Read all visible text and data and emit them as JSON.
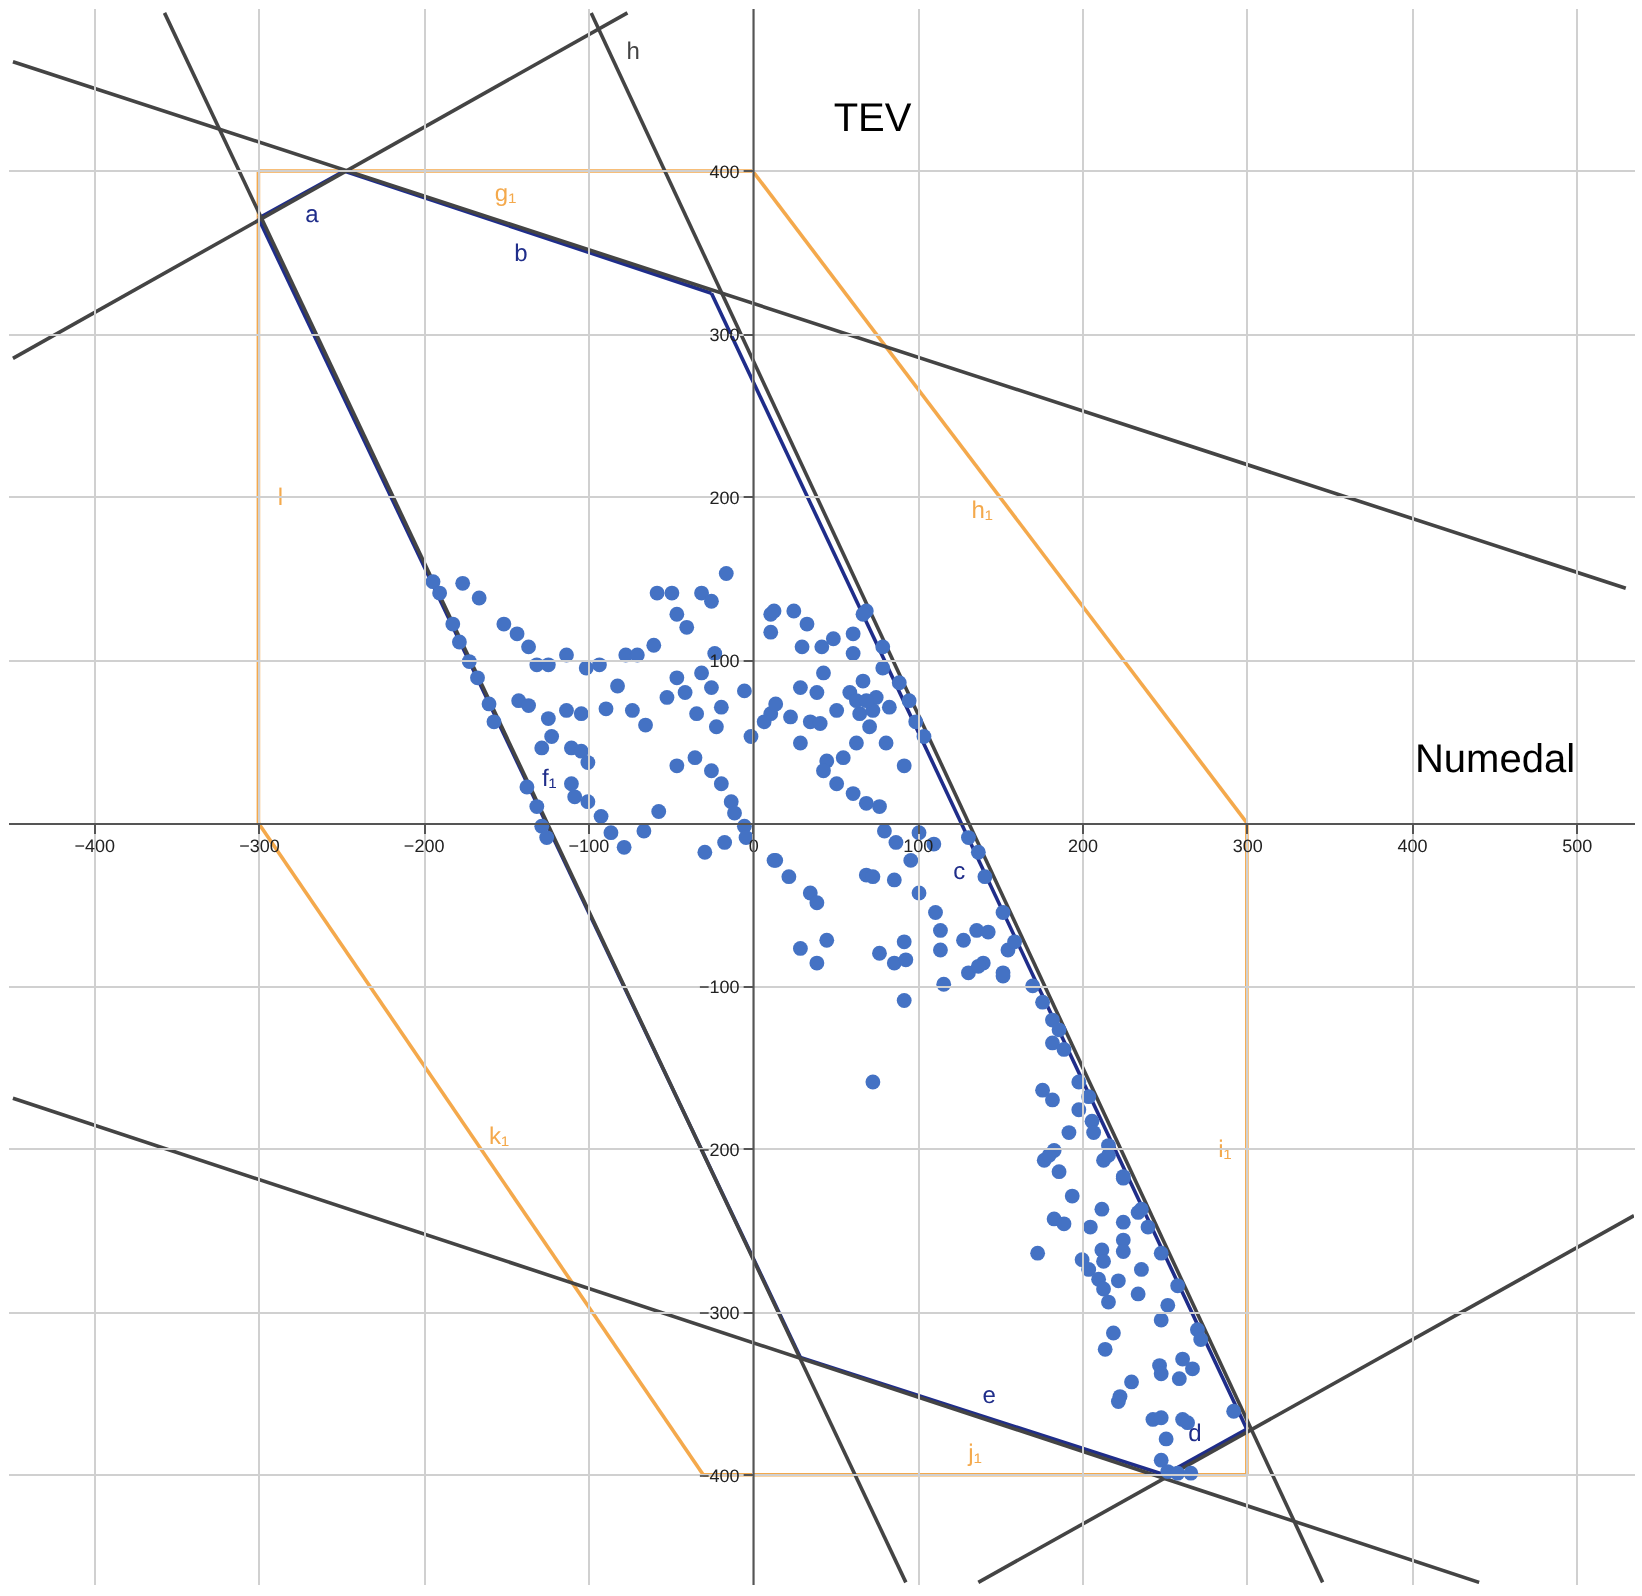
{
  "chart_data": {
    "type": "scatter",
    "xlabel": "Numedal",
    "ylabel": "TEV",
    "xlim": [
      -452,
      535
    ],
    "ylim": [
      -467,
      500
    ],
    "xticks": [
      -400,
      -300,
      -200,
      -100,
      0,
      100,
      200,
      300,
      400,
      500
    ],
    "yticks": [
      -400,
      -300,
      -200,
      -100,
      100,
      200,
      300,
      400
    ],
    "grid": true,
    "series": [
      {
        "type": "line",
        "name": "g₁",
        "color": "#f4a94c",
        "x": [
          -300,
          0
        ],
        "values": [
          400,
          400
        ]
      },
      {
        "type": "line",
        "name": "h₁",
        "color": "#f4a94c",
        "x": [
          0,
          300
        ],
        "values": [
          400,
          0
        ]
      },
      {
        "type": "line",
        "name": "i₁",
        "color": "#f4a94c",
        "x": [
          300,
          300
        ],
        "values": [
          0,
          -400
        ]
      },
      {
        "type": "line",
        "name": "j₁",
        "color": "#f4a94c",
        "x": [
          300,
          -30
        ],
        "values": [
          -400,
          -400
        ]
      },
      {
        "type": "line",
        "name": "k₁",
        "color": "#f4a94c",
        "x": [
          -30,
          -300
        ],
        "values": [
          -400,
          0
        ]
      },
      {
        "type": "line",
        "name": "l",
        "color": "#f4a94c",
        "x": [
          -300,
          -300
        ],
        "values": [
          0,
          400
        ]
      },
      {
        "type": "line",
        "name": "a",
        "color": "#1f2d8a",
        "x": [
          -300,
          -248
        ],
        "values": [
          371,
          400
        ]
      },
      {
        "type": "line",
        "name": "b",
        "color": "#1f2d8a",
        "x": [
          -248,
          -25
        ],
        "values": [
          400,
          325
        ]
      },
      {
        "type": "line",
        "name": "c",
        "color": "#1f2d8a",
        "x": [
          -25,
          300
        ],
        "values": [
          325,
          -372
        ]
      },
      {
        "type": "line",
        "name": "d",
        "color": "#1f2d8a",
        "x": [
          300,
          250
        ],
        "values": [
          -372,
          -400
        ]
      },
      {
        "type": "line",
        "name": "e",
        "color": "#1f2d8a",
        "x": [
          250,
          29
        ],
        "values": [
          -400,
          -328
        ]
      },
      {
        "type": "line",
        "name": "f₁",
        "color": "#1f2d8a",
        "x": [
          29,
          -300
        ],
        "values": [
          -328,
          371
        ]
      },
      {
        "type": "line",
        "color": "#444444",
        "x": [
          -449,
          530
        ],
        "values": [
          467,
          144
        ]
      },
      {
        "type": "line",
        "color": "#444444",
        "x": [
          -449,
          -76
        ],
        "values": [
          285,
          497
        ]
      },
      {
        "type": "line",
        "color": "#444444",
        "x": [
          -357,
          93
        ],
        "values": [
          497,
          -466
        ]
      },
      {
        "type": "line",
        "name": "h",
        "color": "#444444",
        "x": [
          -98,
          346
        ],
        "values": [
          497,
          -466
        ]
      },
      {
        "type": "line",
        "color": "#444444",
        "x": [
          -449,
          441
        ],
        "values": [
          -169,
          -466
        ]
      },
      {
        "type": "line",
        "color": "#444444",
        "x": [
          137,
          535
        ],
        "values": [
          -466,
          -241
        ]
      },
      {
        "color": "#4472c4",
        "marker": "circle",
        "x": [
          -194,
          -190,
          -176,
          -166,
          -182,
          -178,
          -172,
          -167,
          -160,
          -157,
          -151,
          -143,
          -136,
          -131,
          -124,
          -113,
          -142,
          -136,
          -124,
          -113,
          -104,
          -122,
          -128,
          -110,
          -104,
          -100,
          -101,
          -93,
          -82,
          -89,
          -73,
          -65,
          -77,
          -70,
          -60,
          -58,
          -49,
          -46,
          -40,
          -31,
          -25,
          -16,
          -23,
          -46,
          -52,
          -41,
          -31,
          -25,
          -19,
          -34,
          -22,
          -1,
          -5,
          11,
          11,
          -46,
          -35,
          -25,
          -19,
          -13,
          -11,
          -5,
          -4,
          -17,
          -29,
          -108,
          -100,
          -92,
          -86,
          -78,
          -66,
          -57,
          -137,
          -131,
          -128,
          -125,
          -110,
          14,
          13,
          11,
          25,
          33,
          30,
          42,
          49,
          61,
          69,
          61,
          79,
          43,
          14,
          7,
          23,
          29,
          39,
          35,
          41,
          29,
          51,
          59,
          67,
          75,
          65,
          71,
          83,
          95,
          79,
          89,
          99,
          104,
          81,
          63,
          55,
          92,
          45,
          43,
          51,
          61,
          69,
          77,
          80,
          87,
          101,
          110,
          96,
          13,
          22,
          35,
          39,
          69,
          86,
          101,
          111,
          114,
          114,
          128,
          136,
          143,
          131,
          140,
          152,
          116,
          29,
          39,
          45,
          77,
          86,
          92,
          93,
          92,
          152,
          131,
          137,
          141,
          67,
          63,
          73,
          69,
          73,
          155,
          159,
          137,
          152,
          170,
          176,
          182,
          186,
          182,
          189,
          73,
          176,
          182,
          198,
          204,
          198,
          206,
          207,
          192,
          216,
          213,
          177,
          183,
          186,
          225,
          194,
          212,
          234,
          183,
          180,
          216,
          225,
          189,
          205,
          225,
          236,
          240,
          225,
          212,
          225,
          248,
          173,
          200,
          204,
          213,
          236,
          210,
          222,
          213,
          216,
          234,
          258,
          252,
          248,
          270,
          272,
          219,
          214,
          247,
          248,
          261,
          267,
          259,
          230,
          223,
          222,
          243,
          248,
          261,
          264,
          292,
          251,
          248,
          252,
          258,
          266
        ],
        "values": [
          148,
          141,
          147,
          138,
          122,
          111,
          99,
          89,
          73,
          62,
          122,
          116,
          108,
          97,
          97,
          103,
          75,
          72,
          64,
          69,
          67,
          53,
          46,
          46,
          44,
          37,
          95,
          97,
          84,
          70,
          69,
          60,
          103,
          103,
          109,
          141,
          141,
          128,
          120,
          141,
          136,
          153,
          104,
          89,
          77,
          80,
          92,
          83,
          71,
          67,
          59,
          53,
          81,
          128,
          67,
          35,
          40,
          32,
          24,
          13,
          6,
          -2,
          -9,
          -12,
          -18,
          16,
          13,
          4,
          -6,
          -15,
          -5,
          7,
          22,
          10,
          -2,
          -9,
          24,
          -23,
          130,
          117,
          130,
          122,
          108,
          108,
          113,
          116,
          130,
          104,
          108,
          92,
          73,
          62,
          65,
          83,
          80,
          62,
          61,
          49,
          69,
          80,
          87,
          77,
          67,
          59,
          71,
          75,
          95,
          86,
          62,
          53,
          49,
          49,
          40,
          35,
          38,
          32,
          24,
          18,
          12,
          10,
          -5,
          -12,
          -6,
          -13,
          -23,
          -23,
          -33,
          -43,
          -49,
          -32,
          -35,
          -43,
          -55,
          -66,
          -78,
          -72,
          -66,
          -67,
          -92,
          -86,
          -92,
          -99,
          -77,
          -86,
          -72,
          -80,
          -86,
          -73,
          -84,
          -109,
          -55,
          -9,
          -18,
          -33,
          128,
          75,
          69,
          75,
          -159,
          -78,
          -73,
          -88,
          -94,
          -100,
          -110,
          -121,
          -127,
          -135,
          -139,
          -33,
          -164,
          -170,
          -159,
          -168,
          -176,
          -183,
          -190,
          -190,
          -198,
          -207,
          -207,
          -201,
          -214,
          -217,
          -229,
          -237,
          -239,
          -243,
          -204,
          -204,
          -218,
          -246,
          -248,
          -245,
          -237,
          -248,
          -256,
          -262,
          -263,
          -264,
          -264,
          -268,
          -274,
          -269,
          -274,
          -280,
          -281,
          -286,
          -294,
          -289,
          -284,
          -296,
          -305,
          -311,
          -317,
          -313,
          -323,
          -333,
          -338,
          -329,
          -335,
          -341,
          -343,
          -352,
          -355,
          -366,
          -365,
          -366,
          -368,
          -361,
          -378,
          -391,
          -398,
          -399,
          -399
        ]
      }
    ]
  }
}
